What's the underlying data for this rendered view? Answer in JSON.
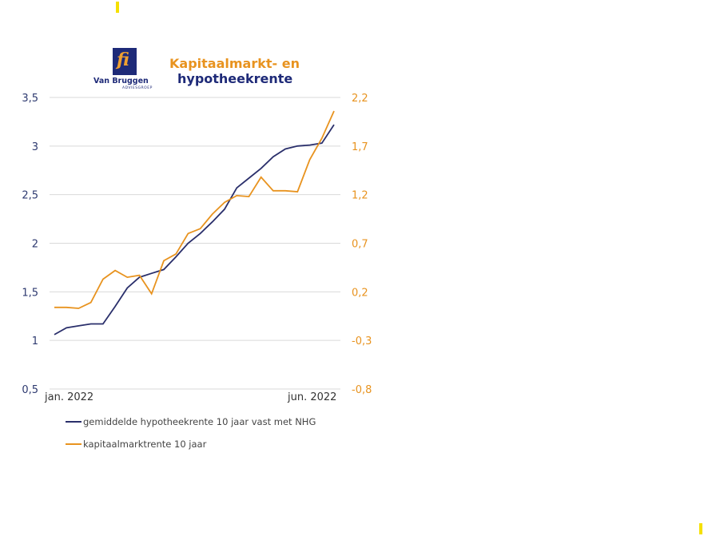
{
  "logo": {
    "name": "Van Bruggen",
    "sub": "ADVIESGROEP",
    "mark": "fi"
  },
  "chart_data": {
    "type": "line",
    "title": [
      "Kapitaalmarkt- en",
      "hypotheekrente"
    ],
    "x_tick_labels": [
      "jan. 2022",
      "jun. 2022"
    ],
    "left_axis": {
      "ylim": [
        0.5,
        3.5
      ],
      "ticks": [
        "0,5",
        "1",
        "1,5",
        "2",
        "2,5",
        "3",
        "3,5"
      ]
    },
    "right_axis": {
      "ylim": [
        -0.8,
        2.2
      ],
      "ticks": [
        "-0,8",
        "-0,3",
        "0,2",
        "0,7",
        "1,2",
        "1,7",
        "2,2"
      ]
    },
    "grid": true,
    "legend_position": "bottom",
    "series": [
      {
        "name": "gemiddelde hypotheekrente 10 jaar vast met NHG",
        "axis": "left",
        "color": "#2a2f6b",
        "values": [
          1.06,
          1.13,
          1.15,
          1.17,
          1.17,
          1.35,
          1.54,
          1.65,
          1.69,
          1.73,
          1.86,
          2.0,
          2.1,
          2.22,
          2.35,
          2.57,
          2.67,
          2.77,
          2.89,
          2.97,
          3.0,
          3.01,
          3.03,
          3.22
        ]
      },
      {
        "name": "kapitaalmarktrente 10 jaar",
        "axis": "right",
        "color": "#e8931f",
        "values": [
          0.04,
          0.04,
          0.03,
          0.09,
          0.33,
          0.42,
          0.35,
          0.37,
          0.18,
          0.52,
          0.59,
          0.8,
          0.85,
          1.0,
          1.12,
          1.19,
          1.18,
          1.38,
          1.24,
          1.24,
          1.23,
          1.56,
          1.78,
          2.06
        ]
      }
    ]
  }
}
